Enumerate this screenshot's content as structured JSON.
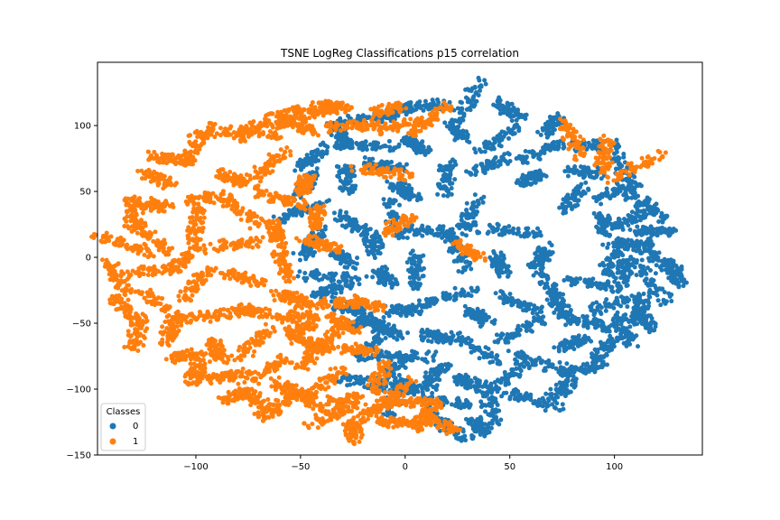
{
  "chart_data": {
    "type": "scatter",
    "title": "TSNE LogReg Classifications p15 correlation",
    "xlabel": "",
    "ylabel": "",
    "xlim": [
      -147,
      142
    ],
    "ylim": [
      -150,
      148
    ],
    "xticks": [
      -100,
      -50,
      0,
      50,
      100
    ],
    "yticks": [
      -150,
      -100,
      -50,
      0,
      50,
      100
    ],
    "xtick_labels": [
      "−100",
      "−50",
      "0",
      "50",
      "100"
    ],
    "ytick_labels": [
      "−150",
      "−100",
      "−50",
      "0",
      "50",
      "100"
    ],
    "grid": false,
    "legend": {
      "title": "Classes",
      "placement": "lower-left",
      "entries": [
        {
          "label": "0",
          "color": "#1f77b4"
        },
        {
          "label": "1",
          "color": "#ff7f0e"
        }
      ]
    },
    "series": [
      {
        "name": "0",
        "color": "#1f77b4",
        "region_note_points": [
          [
            -45,
            75
          ],
          [
            -30,
            90
          ],
          [
            -20,
            105
          ],
          [
            -5,
            110
          ],
          [
            10,
            115
          ],
          [
            30,
            118
          ],
          [
            50,
            112
          ],
          [
            70,
            100
          ],
          [
            90,
            85
          ],
          [
            105,
            65
          ],
          [
            115,
            40
          ],
          [
            118,
            20
          ],
          [
            120,
            0
          ],
          [
            118,
            -20
          ],
          [
            112,
            -40
          ],
          [
            105,
            -55
          ],
          [
            95,
            -70
          ],
          [
            85,
            -85
          ],
          [
            75,
            -100
          ],
          [
            60,
            -108
          ],
          [
            40,
            -112
          ],
          [
            20,
            -110
          ],
          [
            5,
            -100
          ],
          [
            -5,
            -85
          ],
          [
            -15,
            -65
          ],
          [
            -25,
            -40
          ],
          [
            -35,
            -15
          ],
          [
            -45,
            10
          ],
          [
            -50,
            35
          ],
          [
            -48,
            55
          ],
          [
            0,
            50
          ],
          [
            20,
            60
          ],
          [
            40,
            70
          ],
          [
            60,
            60
          ],
          [
            80,
            45
          ],
          [
            95,
            25
          ],
          [
            100,
            0
          ],
          [
            90,
            -20
          ],
          [
            75,
            -40
          ],
          [
            55,
            -55
          ],
          [
            35,
            -70
          ],
          [
            15,
            -60
          ],
          [
            0,
            -40
          ],
          [
            -10,
            -15
          ],
          [
            -15,
            10
          ],
          [
            -5,
            30
          ],
          [
            10,
            20
          ],
          [
            30,
            30
          ],
          [
            50,
            20
          ],
          [
            65,
            0
          ],
          [
            70,
            -25
          ],
          [
            55,
            -35
          ],
          [
            35,
            -45
          ],
          [
            20,
            -30
          ],
          [
            5,
            -10
          ],
          [
            25,
            5
          ],
          [
            45,
            -5
          ],
          [
            -20,
            85
          ],
          [
            -10,
            70
          ],
          [
            5,
            85
          ],
          [
            25,
            95
          ],
          [
            45,
            90
          ],
          [
            65,
            80
          ],
          [
            85,
            65
          ],
          [
            100,
            50
          ],
          [
            110,
            30
          ],
          [
            108,
            10
          ],
          [
            105,
            -10
          ],
          [
            100,
            -35
          ],
          [
            90,
            -50
          ],
          [
            80,
            -65
          ],
          [
            65,
            -80
          ],
          [
            50,
            -90
          ],
          [
            30,
            -95
          ],
          [
            15,
            -88
          ],
          [
            -2,
            -75
          ],
          [
            -28,
            60
          ],
          [
            -25,
            25
          ],
          [
            -30,
            0
          ],
          [
            -35,
            -25
          ],
          [
            -20,
            -50
          ],
          [
            -8,
            -55
          ],
          [
            128,
            -12
          ],
          [
            115,
            -48
          ],
          [
            20,
            -128
          ],
          [
            35,
            -128
          ],
          [
            -20,
            -95
          ],
          [
            -5,
            -105
          ]
        ]
      },
      {
        "name": "1",
        "color": "#ff7f0e",
        "region_note_points": [
          [
            -130,
            35
          ],
          [
            -135,
            10
          ],
          [
            -138,
            -15
          ],
          [
            -133,
            -40
          ],
          [
            -128,
            -58
          ],
          [
            -118,
            60
          ],
          [
            -112,
            75
          ],
          [
            -100,
            85
          ],
          [
            -85,
            95
          ],
          [
            -70,
            100
          ],
          [
            -58,
            103
          ],
          [
            -120,
            40
          ],
          [
            -122,
            15
          ],
          [
            -120,
            -10
          ],
          [
            -118,
            -35
          ],
          [
            -112,
            -55
          ],
          [
            -105,
            -75
          ],
          [
            -100,
            -88
          ],
          [
            -95,
            45
          ],
          [
            -100,
            25
          ],
          [
            -105,
            0
          ],
          [
            -100,
            -20
          ],
          [
            -95,
            -45
          ],
          [
            -90,
            -70
          ],
          [
            -85,
            -90
          ],
          [
            -80,
            -105
          ],
          [
            -70,
            -110
          ],
          [
            -60,
            -112
          ],
          [
            -82,
            60
          ],
          [
            -78,
            35
          ],
          [
            -80,
            10
          ],
          [
            -78,
            -15
          ],
          [
            -75,
            -40
          ],
          [
            -72,
            -65
          ],
          [
            -65,
            -85
          ],
          [
            -55,
            -100
          ],
          [
            -45,
            -110
          ],
          [
            -35,
            -120
          ],
          [
            -25,
            -132
          ],
          [
            -65,
            70
          ],
          [
            -60,
            45
          ],
          [
            -62,
            20
          ],
          [
            -58,
            -5
          ],
          [
            -55,
            -30
          ],
          [
            -50,
            -55
          ],
          [
            -45,
            -75
          ],
          [
            -38,
            -95
          ],
          [
            -28,
            -108
          ],
          [
            -15,
            -115
          ],
          [
            -5,
            -125
          ],
          [
            -48,
            55
          ],
          [
            -42,
            30
          ],
          [
            -40,
            10
          ],
          [
            -38,
            -35
          ],
          [
            -30,
            -50
          ],
          [
            -20,
            -35
          ],
          [
            -22,
            -70
          ],
          [
            -12,
            -90
          ],
          [
            -5,
            -105
          ],
          [
            5,
            -110
          ],
          [
            10,
            -120
          ],
          [
            15,
            -125
          ],
          [
            -50,
            100
          ],
          [
            -42,
            110
          ],
          [
            -35,
            115
          ],
          [
            -25,
            100
          ],
          [
            -8,
            112
          ],
          [
            -2,
            100
          ],
          [
            12,
            105
          ],
          [
            80,
            90
          ],
          [
            95,
            78
          ],
          [
            110,
            68
          ],
          [
            -10,
            65
          ],
          [
            -3,
            25
          ],
          [
            30,
            5
          ],
          [
            -52,
            -45
          ],
          [
            -45,
            -65
          ],
          [
            -35,
            -60
          ]
        ]
      }
    ]
  }
}
